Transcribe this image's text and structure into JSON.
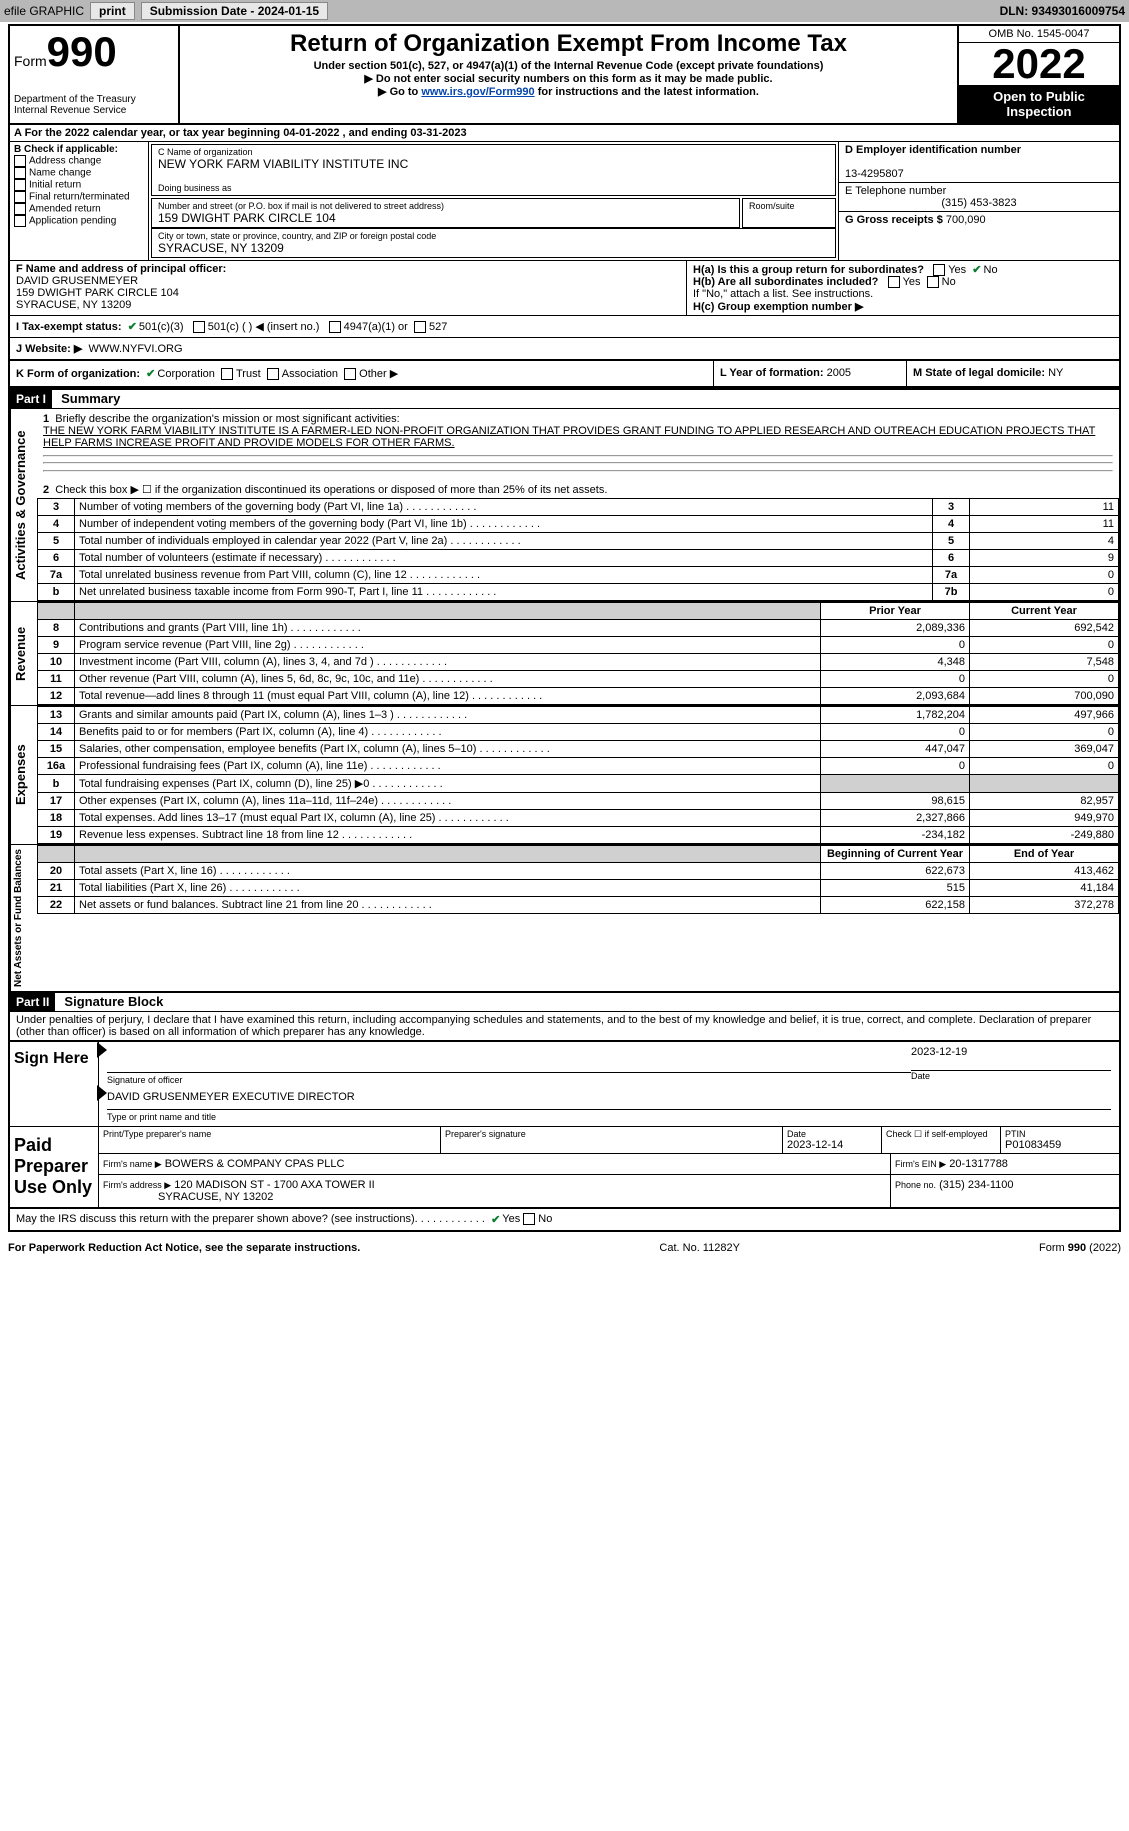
{
  "topbar": {
    "efile": "efile GRAPHIC",
    "print": "print",
    "submission_label": "Submission Date - 2024-01-15",
    "dln": "DLN: 93493016009754"
  },
  "header": {
    "form_word": "Form",
    "form_num": "990",
    "dept": "Department of the Treasury",
    "irs": "Internal Revenue Service",
    "title": "Return of Organization Exempt From Income Tax",
    "subtitle": "Under section 501(c), 527, or 4947(a)(1) of the Internal Revenue Code (except private foundations)",
    "note1": "▶ Do not enter social security numbers on this form as it may be made public.",
    "note2_pre": "▶ Go to ",
    "note2_link": "www.irs.gov/Form990",
    "note2_post": " for instructions and the latest information.",
    "omb": "OMB No. 1545-0047",
    "year": "2022",
    "inspect": "Open to Public Inspection"
  },
  "section_a": {
    "text": "A For the 2022 calendar year, or tax year beginning 04-01-2022   , and ending 03-31-2023"
  },
  "section_b": {
    "label": "B Check if applicable:",
    "items": [
      "Address change",
      "Name change",
      "Initial return",
      "Final return/terminated",
      "Amended return",
      "Application pending"
    ]
  },
  "section_c": {
    "name_label": "C Name of organization",
    "name": "NEW YORK FARM VIABILITY INSTITUTE INC",
    "dba_label": "Doing business as",
    "dba": "",
    "street_label": "Number and street (or P.O. box if mail is not delivered to street address)",
    "room_label": "Room/suite",
    "street": "159 DWIGHT PARK CIRCLE 104",
    "city_label": "City or town, state or province, country, and ZIP or foreign postal code",
    "city": "SYRACUSE, NY  13209"
  },
  "section_d": {
    "label": "D Employer identification number",
    "value": "13-4295807"
  },
  "section_e": {
    "label": "E Telephone number",
    "value": "(315) 453-3823"
  },
  "section_g": {
    "label": "G Gross receipts $",
    "value": "700,090"
  },
  "section_f": {
    "label": "F Name and address of principal officer:",
    "name": "DAVID GRUSENMEYER",
    "addr1": "159 DWIGHT PARK CIRCLE 104",
    "addr2": "SYRACUSE, NY  13209"
  },
  "section_h": {
    "a_label": "H(a)  Is this a group return for subordinates?",
    "a_yes": "Yes",
    "a_no": "No",
    "b_label": "H(b)  Are all subordinates included?",
    "b_note": "If \"No,\" attach a list. See instructions.",
    "c_label": "H(c)  Group exemption number ▶"
  },
  "section_i": {
    "label": "I   Tax-exempt status:",
    "opt1": "501(c)(3)",
    "opt2": "501(c) (  ) ◀ (insert no.)",
    "opt3": "4947(a)(1) or",
    "opt4": "527"
  },
  "section_j": {
    "label": "J   Website: ▶",
    "value": "WWW.NYFVI.ORG"
  },
  "section_k": {
    "label": "K Form of organization:",
    "opts": [
      "Corporation",
      "Trust",
      "Association",
      "Other ▶"
    ]
  },
  "section_l": {
    "label": "L Year of formation:",
    "value": "2005"
  },
  "section_m": {
    "label": "M State of legal domicile:",
    "value": "NY"
  },
  "part1": {
    "header": "Part I",
    "title": "Summary",
    "side_activities": "Activities & Governance",
    "side_revenue": "Revenue",
    "side_expenses": "Expenses",
    "side_netassets": "Net Assets or Fund Balances",
    "line1_label": "Briefly describe the organization's mission or most significant activities:",
    "line1_text": "THE NEW YORK FARM VIABILITY INSTITUTE IS A FARMER-LED NON-PROFIT ORGANIZATION THAT PROVIDES GRANT FUNDING TO APPLIED RESEARCH AND OUTREACH EDUCATION PROJECTS THAT HELP FARMS INCREASE PROFIT AND PROVIDE MODELS FOR OTHER FARMS.",
    "line2": "Check this box ▶ ☐ if the organization discontinued its operations or disposed of more than 25% of its net assets.",
    "hdr_prior": "Prior Year",
    "hdr_current": "Current Year",
    "hdr_begin": "Beginning of Current Year",
    "hdr_end": "End of Year",
    "rows_gov": [
      {
        "n": "3",
        "t": "Number of voting members of the governing body (Part VI, line 1a)",
        "b": "3",
        "v": "11"
      },
      {
        "n": "4",
        "t": "Number of independent voting members of the governing body (Part VI, line 1b)",
        "b": "4",
        "v": "11"
      },
      {
        "n": "5",
        "t": "Total number of individuals employed in calendar year 2022 (Part V, line 2a)",
        "b": "5",
        "v": "4"
      },
      {
        "n": "6",
        "t": "Total number of volunteers (estimate if necessary)",
        "b": "6",
        "v": "9"
      },
      {
        "n": "7a",
        "t": "Total unrelated business revenue from Part VIII, column (C), line 12",
        "b": "7a",
        "v": "0"
      },
      {
        "n": "b",
        "t": "Net unrelated business taxable income from Form 990-T, Part I, line 11",
        "b": "7b",
        "v": "0"
      }
    ],
    "rows_rev": [
      {
        "n": "8",
        "t": "Contributions and grants (Part VIII, line 1h)",
        "p": "2,089,336",
        "c": "692,542"
      },
      {
        "n": "9",
        "t": "Program service revenue (Part VIII, line 2g)",
        "p": "0",
        "c": "0"
      },
      {
        "n": "10",
        "t": "Investment income (Part VIII, column (A), lines 3, 4, and 7d )",
        "p": "4,348",
        "c": "7,548"
      },
      {
        "n": "11",
        "t": "Other revenue (Part VIII, column (A), lines 5, 6d, 8c, 9c, 10c, and 11e)",
        "p": "0",
        "c": "0"
      },
      {
        "n": "12",
        "t": "Total revenue—add lines 8 through 11 (must equal Part VIII, column (A), line 12)",
        "p": "2,093,684",
        "c": "700,090"
      }
    ],
    "rows_exp": [
      {
        "n": "13",
        "t": "Grants and similar amounts paid (Part IX, column (A), lines 1–3 )",
        "p": "1,782,204",
        "c": "497,966"
      },
      {
        "n": "14",
        "t": "Benefits paid to or for members (Part IX, column (A), line 4)",
        "p": "0",
        "c": "0"
      },
      {
        "n": "15",
        "t": "Salaries, other compensation, employee benefits (Part IX, column (A), lines 5–10)",
        "p": "447,047",
        "c": "369,047"
      },
      {
        "n": "16a",
        "t": "Professional fundraising fees (Part IX, column (A), line 11e)",
        "p": "0",
        "c": "0"
      },
      {
        "n": "b",
        "t": "Total fundraising expenses (Part IX, column (D), line 25) ▶0",
        "p": "",
        "c": "",
        "gray": true
      },
      {
        "n": "17",
        "t": "Other expenses (Part IX, column (A), lines 11a–11d, 11f–24e)",
        "p": "98,615",
        "c": "82,957"
      },
      {
        "n": "18",
        "t": "Total expenses. Add lines 13–17 (must equal Part IX, column (A), line 25)",
        "p": "2,327,866",
        "c": "949,970"
      },
      {
        "n": "19",
        "t": "Revenue less expenses. Subtract line 18 from line 12",
        "p": "-234,182",
        "c": "-249,880"
      }
    ],
    "rows_net": [
      {
        "n": "20",
        "t": "Total assets (Part X, line 16)",
        "p": "622,673",
        "c": "413,462"
      },
      {
        "n": "21",
        "t": "Total liabilities (Part X, line 26)",
        "p": "515",
        "c": "41,184"
      },
      {
        "n": "22",
        "t": "Net assets or fund balances. Subtract line 21 from line 20",
        "p": "622,158",
        "c": "372,278"
      }
    ]
  },
  "part2": {
    "header": "Part II",
    "title": "Signature Block",
    "decl": "Under penalties of perjury, I declare that I have examined this return, including accompanying schedules and statements, and to the best of my knowledge and belief, it is true, correct, and complete. Declaration of preparer (other than officer) is based on all information of which preparer has any knowledge.",
    "sign_here": "Sign Here",
    "sig_officer": "Signature of officer",
    "sig_date": "2023-12-19",
    "date_label": "Date",
    "typed_name": "DAVID GRUSENMEYER  EXECUTIVE DIRECTOR",
    "typed_label": "Type or print name and title",
    "paid": "Paid Preparer Use Only",
    "prep_name_label": "Print/Type preparer's name",
    "prep_sig_label": "Preparer's signature",
    "prep_date_label": "Date",
    "prep_date": "2023-12-14",
    "check_self": "Check ☐ if self-employed",
    "ptin_label": "PTIN",
    "ptin": "P01083459",
    "firm_name_label": "Firm's name    ▶",
    "firm_name": "BOWERS & COMPANY CPAS PLLC",
    "firm_ein_label": "Firm's EIN ▶",
    "firm_ein": "20-1317788",
    "firm_addr_label": "Firm's address ▶",
    "firm_addr1": "120 MADISON ST - 1700 AXA TOWER II",
    "firm_addr2": "SYRACUSE, NY  13202",
    "phone_label": "Phone no.",
    "phone": "(315) 234-1100",
    "discuss": "May the IRS discuss this return with the preparer shown above? (see instructions)",
    "yes": "Yes",
    "no": "No"
  },
  "footer": {
    "left": "For Paperwork Reduction Act Notice, see the separate instructions.",
    "mid": "Cat. No. 11282Y",
    "right": "Form 990 (2022)"
  }
}
